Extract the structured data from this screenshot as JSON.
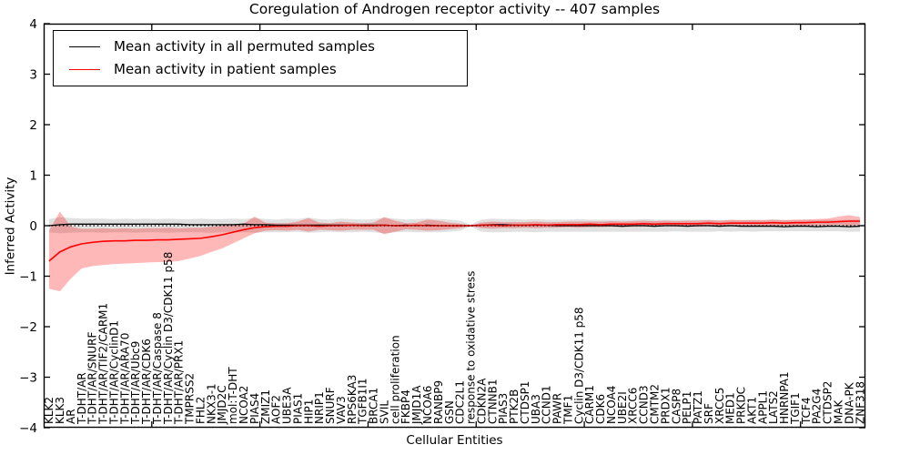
{
  "figure": {
    "title": "Coregulation of Androgen receptor activity -- 407 samples",
    "xlabel": "Cellular Entities",
    "ylabel": "Inferred Activity"
  },
  "legend": {
    "position": "upper left",
    "entries": [
      {
        "label": "Mean activity in all permuted samples",
        "color": "#000000"
      },
      {
        "label": "Mean activity in patient samples",
        "color": "#ff0000"
      }
    ]
  },
  "colors": {
    "background": "#ffffff",
    "axis": "#000000",
    "permuted_line": "#000000",
    "patient_line": "#ff0000",
    "permuted_band": "rgba(0,0,0,0.12)",
    "patient_band": "rgba(255,0,0,0.28)",
    "zero_line": "#000000"
  },
  "chart_data": {
    "type": "line",
    "title": "Coregulation of Androgen receptor activity -- 407 samples",
    "xlabel": "Cellular Entities",
    "ylabel": "Inferred Activity",
    "ylim": [
      -4,
      4
    ],
    "ytick_values": [
      -4,
      -3,
      -2,
      -1,
      0,
      1,
      2,
      3,
      4
    ],
    "ytick_labels": [
      "−4",
      "−3",
      "−2",
      "−1",
      "0",
      "1",
      "2",
      "3",
      "4"
    ],
    "xticks_top": [
      10,
      20,
      30,
      40,
      50,
      60,
      70
    ],
    "grid": false,
    "legend_position": "upper left",
    "zero_line": {
      "y": 0,
      "style": "dotted"
    },
    "categories": [
      "KLK2",
      "KLK3",
      "AR",
      "T-DHT/AR",
      "T-DHT/AR/SNURF",
      "T-DHT/AR/TIF2/CARM1",
      "T-DHT/AR/CyclinD1",
      "T-DHT/AR/ARA70",
      "T-DHT/AR/Ubc9",
      "T-DHT/AR/CDK6",
      "T-DHT/AR/Caspase 8",
      "T-DHT/AR/Cyclin D3/CDK11 p58",
      "T-DHT/AR/PRX1",
      "TMPRSS2",
      "FHL2",
      "NKX3-1",
      "JMJD2C",
      "mol:T-DHT",
      "NCOA2",
      "PIAS4",
      "ZMIZ1",
      "AOF2",
      "UBE3A",
      "PIAS1",
      "HIP1",
      "NRIP1",
      "SNURF",
      "VAV3",
      "RPS6KA3",
      "TGFB1I1",
      "BRCA1",
      "SVIL",
      "cell proliferation",
      "FKBP4",
      "JMJD1A",
      "NCOA6",
      "RANBP9",
      "GSN",
      "CDC2L1",
      "response to oxidative stress",
      "CDKN2A",
      "CTNNB1",
      "PIAS3",
      "PTK2B",
      "CTDSP1",
      "UBA3",
      "CCND1",
      "PAWR",
      "TMF1",
      "Cyclin D3/CDK11 p58",
      "CARM1",
      "CDK6",
      "NCOA4",
      "UBE2I",
      "XRCC6",
      "CCND3",
      "CMTM2",
      "PRDX1",
      "CASP8",
      "PELP1",
      "PATZ1",
      "SRF",
      "XRCC5",
      "MED1",
      "PRKDC",
      "AKT1",
      "APPL1",
      "LATS2",
      "HNRNPA1",
      "TGIF1",
      "TCF4",
      "PA2G4",
      "CTDSP2",
      "MAK",
      "DNA-PK",
      "ZNF318"
    ],
    "series": [
      {
        "name": "Mean activity in all permuted samples",
        "color": "#000000",
        "values": [
          0.0,
          0.02,
          0.03,
          0.03,
          0.03,
          0.03,
          0.03,
          0.03,
          0.03,
          0.03,
          0.03,
          0.03,
          0.03,
          0.02,
          0.02,
          0.02,
          0.02,
          0.02,
          0.03,
          0.02,
          0.02,
          0.01,
          0.01,
          0.01,
          0.01,
          0.01,
          0.01,
          0.01,
          0.01,
          0.01,
          0.01,
          0.01,
          0.0,
          0.01,
          0.0,
          0.01,
          0.0,
          0.0,
          0.0,
          0.0,
          0.01,
          0.02,
          0.02,
          0.01,
          0.01,
          0.01,
          0.01,
          0.0,
          0.0,
          0.0,
          0.0,
          0.0,
          0.0,
          -0.01,
          0.0,
          0.0,
          -0.01,
          0.0,
          0.0,
          -0.01,
          0.0,
          0.0,
          -0.01,
          0.0,
          -0.01,
          -0.01,
          -0.01,
          -0.01,
          -0.02,
          -0.01,
          -0.01,
          -0.02,
          -0.01,
          -0.01,
          -0.02,
          -0.01
        ],
        "band_top": [
          0.13,
          0.17,
          0.15,
          0.14,
          0.14,
          0.14,
          0.13,
          0.14,
          0.13,
          0.14,
          0.13,
          0.14,
          0.13,
          0.13,
          0.14,
          0.13,
          0.13,
          0.14,
          0.13,
          0.15,
          0.13,
          0.12,
          0.14,
          0.13,
          0.16,
          0.13,
          0.12,
          0.14,
          0.13,
          0.12,
          0.13,
          0.16,
          0.14,
          0.12,
          0.13,
          0.14,
          0.13,
          0.12,
          0.1,
          0.02,
          0.12,
          0.14,
          0.13,
          0.13,
          0.12,
          0.13,
          0.12,
          0.12,
          0.12,
          0.13,
          0.12,
          0.12,
          0.12,
          0.12,
          0.12,
          0.13,
          0.12,
          0.12,
          0.12,
          0.12,
          0.12,
          0.12,
          0.11,
          0.12,
          0.11,
          0.12,
          0.11,
          0.12,
          0.11,
          0.11,
          0.12,
          0.11,
          0.12,
          0.11,
          0.12,
          0.12
        ],
        "band_bottom": [
          -0.13,
          -0.15,
          -0.14,
          -0.13,
          -0.13,
          -0.14,
          -0.13,
          -0.13,
          -0.14,
          -0.13,
          -0.13,
          -0.14,
          -0.13,
          -0.13,
          -0.13,
          -0.14,
          -0.13,
          -0.13,
          -0.13,
          -0.14,
          -0.13,
          -0.13,
          -0.13,
          -0.12,
          -0.14,
          -0.13,
          -0.12,
          -0.13,
          -0.13,
          -0.12,
          -0.13,
          -0.15,
          -0.13,
          -0.12,
          -0.13,
          -0.13,
          -0.13,
          -0.12,
          -0.1,
          -0.02,
          -0.12,
          -0.13,
          -0.13,
          -0.12,
          -0.12,
          -0.13,
          -0.12,
          -0.12,
          -0.12,
          -0.12,
          -0.12,
          -0.12,
          -0.12,
          -0.12,
          -0.12,
          -0.12,
          -0.12,
          -0.12,
          -0.11,
          -0.12,
          -0.12,
          -0.12,
          -0.11,
          -0.12,
          -0.11,
          -0.12,
          -0.11,
          -0.11,
          -0.11,
          -0.11,
          -0.11,
          -0.11,
          -0.11,
          -0.11,
          -0.12,
          -0.12
        ]
      },
      {
        "name": "Mean activity in patient samples",
        "color": "#ff0000",
        "values": [
          -0.7,
          -0.52,
          -0.42,
          -0.36,
          -0.33,
          -0.31,
          -0.3,
          -0.3,
          -0.29,
          -0.29,
          -0.28,
          -0.28,
          -0.27,
          -0.26,
          -0.25,
          -0.22,
          -0.18,
          -0.13,
          -0.08,
          -0.04,
          -0.02,
          -0.01,
          -0.01,
          0.0,
          0.0,
          -0.01,
          0.0,
          0.0,
          0.01,
          0.0,
          0.0,
          0.01,
          0.0,
          0.0,
          0.01,
          0.0,
          0.0,
          0.0,
          0.0,
          0.0,
          0.01,
          0.01,
          0.0,
          0.01,
          0.01,
          0.02,
          0.01,
          0.02,
          0.02,
          0.02,
          0.03,
          0.02,
          0.03,
          0.03,
          0.03,
          0.04,
          0.03,
          0.04,
          0.04,
          0.04,
          0.04,
          0.05,
          0.04,
          0.05,
          0.05,
          0.05,
          0.05,
          0.06,
          0.05,
          0.06,
          0.06,
          0.07,
          0.07,
          0.08,
          0.09,
          0.09
        ],
        "band_top": [
          -0.1,
          0.28,
          -0.02,
          -0.06,
          -0.06,
          -0.05,
          -0.06,
          -0.05,
          -0.06,
          -0.05,
          -0.05,
          -0.04,
          -0.05,
          -0.04,
          -0.04,
          -0.02,
          0.0,
          0.02,
          0.04,
          0.18,
          0.06,
          0.05,
          0.05,
          0.08,
          0.15,
          0.06,
          0.05,
          0.08,
          0.06,
          0.05,
          0.06,
          0.17,
          0.1,
          0.05,
          0.06,
          0.12,
          0.1,
          0.06,
          0.04,
          0.01,
          0.06,
          0.08,
          0.07,
          0.07,
          0.07,
          0.08,
          0.07,
          0.07,
          0.08,
          0.08,
          0.08,
          0.08,
          0.09,
          0.08,
          0.09,
          0.1,
          0.09,
          0.1,
          0.09,
          0.1,
          0.1,
          0.11,
          0.1,
          0.11,
          0.11,
          0.11,
          0.11,
          0.12,
          0.11,
          0.12,
          0.12,
          0.13,
          0.14,
          0.18,
          0.21,
          0.17
        ],
        "band_bottom": [
          -1.25,
          -1.3,
          -1.05,
          -0.85,
          -0.8,
          -0.78,
          -0.76,
          -0.75,
          -0.74,
          -0.73,
          -0.72,
          -0.72,
          -0.7,
          -0.65,
          -0.6,
          -0.52,
          -0.45,
          -0.35,
          -0.25,
          -0.15,
          -0.1,
          -0.09,
          -0.1,
          -0.08,
          -0.12,
          -0.08,
          -0.09,
          -0.1,
          -0.08,
          -0.08,
          -0.08,
          -0.17,
          -0.12,
          -0.07,
          -0.08,
          -0.1,
          -0.09,
          -0.07,
          -0.05,
          -0.01,
          -0.05,
          -0.06,
          -0.05,
          -0.05,
          -0.04,
          -0.05,
          -0.04,
          -0.04,
          -0.03,
          -0.04,
          -0.03,
          -0.03,
          -0.02,
          -0.03,
          -0.02,
          -0.02,
          -0.02,
          -0.01,
          -0.02,
          -0.01,
          -0.02,
          -0.01,
          -0.02,
          -0.01,
          -0.01,
          -0.01,
          0.0,
          -0.01,
          0.0,
          0.0,
          0.0,
          0.01,
          0.01,
          0.02,
          0.0,
          0.02
        ]
      }
    ]
  }
}
